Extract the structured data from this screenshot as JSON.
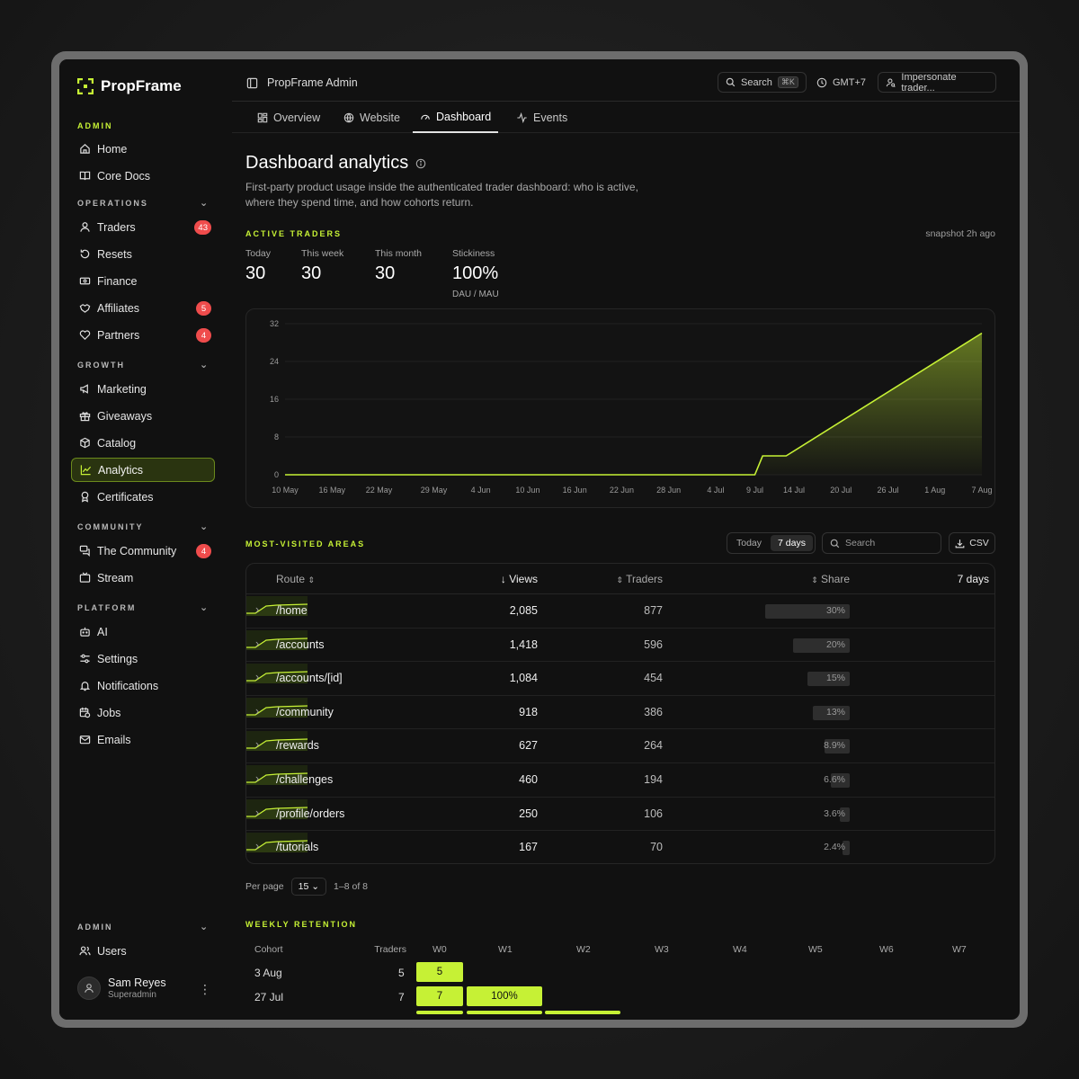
{
  "app": {
    "name": "PropFrame",
    "window_title": "PropFrame Admin"
  },
  "sidebar": {
    "admin_label": "ADMIN",
    "top_items": [
      {
        "label": "Home",
        "icon": "home-icon"
      },
      {
        "label": "Core Docs",
        "icon": "book-icon"
      }
    ],
    "sections": [
      {
        "label": "OPERATIONS",
        "items": [
          {
            "label": "Traders",
            "badge": "43"
          },
          {
            "label": "Resets"
          },
          {
            "label": "Finance"
          },
          {
            "label": "Affiliates",
            "badge": "5"
          },
          {
            "label": "Partners",
            "badge": "4"
          }
        ]
      },
      {
        "label": "GROWTH",
        "items": [
          {
            "label": "Marketing"
          },
          {
            "label": "Giveaways"
          },
          {
            "label": "Catalog"
          },
          {
            "label": "Analytics",
            "active": true
          },
          {
            "label": "Certificates"
          }
        ]
      },
      {
        "label": "COMMUNITY",
        "items": [
          {
            "label": "The Community",
            "badge": "4"
          },
          {
            "label": "Stream"
          }
        ]
      },
      {
        "label": "PLATFORM",
        "items": [
          {
            "label": "AI"
          },
          {
            "label": "Settings"
          },
          {
            "label": "Notifications"
          },
          {
            "label": "Jobs"
          },
          {
            "label": "Emails"
          }
        ]
      },
      {
        "label": "ADMIN",
        "items": [
          {
            "label": "Users"
          }
        ]
      }
    ],
    "user": {
      "name": "Sam Reyes",
      "role": "Superadmin"
    }
  },
  "topbar": {
    "search_label": "Search",
    "search_shortcut": "⌘K",
    "timezone": "GMT+7",
    "impersonate_label": "Impersonate trader..."
  },
  "tabs": [
    {
      "label": "Overview"
    },
    {
      "label": "Website"
    },
    {
      "label": "Dashboard",
      "active": true
    },
    {
      "label": "Events"
    }
  ],
  "page": {
    "title": "Dashboard analytics",
    "description": "First-party product usage inside the authenticated trader dashboard: who is active, where they spend time, and how cohorts return.",
    "active_traders_label": "ACTIVE TRADERS",
    "snapshot": "snapshot 2h ago",
    "stats": [
      {
        "label": "Today",
        "value": "30"
      },
      {
        "label": "This week",
        "value": "30"
      },
      {
        "label": "This month",
        "value": "30"
      },
      {
        "label": "Stickiness",
        "value": "100%",
        "sub": "DAU / MAU"
      }
    ]
  },
  "chart_data": {
    "type": "area",
    "x": [
      "10 May",
      "9 Jul",
      "10 Jul",
      "13 Jul",
      "7 Aug"
    ],
    "y": [
      0,
      0,
      4,
      4,
      30
    ],
    "xticks": [
      "10 May",
      "16 May",
      "22 May",
      "29 May",
      "4 Jun",
      "10 Jun",
      "16 Jun",
      "22 Jun",
      "28 Jun",
      "4 Jul",
      "9 Jul",
      "14 Jul",
      "20 Jul",
      "26 Jul",
      "1 Aug",
      "7 Aug"
    ],
    "yticks": [
      "0",
      "8",
      "16",
      "24",
      "32"
    ],
    "ylim": [
      0,
      32
    ],
    "grid": true,
    "color": "#c6f135"
  },
  "areas": {
    "label": "MOST-VISITED AREAS",
    "ranges": [
      "Today",
      "7 days"
    ],
    "search_placeholder": "Search",
    "csv_label": "CSV",
    "columns": {
      "route": "Route",
      "views": "Views",
      "traders": "Traders",
      "share": "Share",
      "trend": "7 days"
    },
    "rows": [
      {
        "route": "/home",
        "views": "2,085",
        "traders": "877",
        "share": "30%",
        "share_value": 30
      },
      {
        "route": "/accounts",
        "views": "1,418",
        "traders": "596",
        "share": "20%",
        "share_value": 20
      },
      {
        "route": "/accounts/[id]",
        "views": "1,084",
        "traders": "454",
        "share": "15%",
        "share_value": 15
      },
      {
        "route": "/community",
        "views": "918",
        "traders": "386",
        "share": "13%",
        "share_value": 13
      },
      {
        "route": "/rewards",
        "views": "627",
        "traders": "264",
        "share": "8.9%",
        "share_value": 8.9
      },
      {
        "route": "/challenges",
        "views": "460",
        "traders": "194",
        "share": "6.6%",
        "share_value": 6.6
      },
      {
        "route": "/profile/orders",
        "views": "250",
        "traders": "106",
        "share": "3.6%",
        "share_value": 3.6
      },
      {
        "route": "/tutorials",
        "views": "167",
        "traders": "70",
        "share": "2.4%",
        "share_value": 2.4
      }
    ],
    "per_page_label": "Per page",
    "per_page": "15",
    "range_text": "1–8 of 8"
  },
  "retention": {
    "label": "WEEKLY RETENTION",
    "columns": [
      "Cohort",
      "Traders",
      "W0",
      "W1",
      "W2",
      "W3",
      "W4",
      "W5",
      "W6",
      "W7"
    ],
    "rows": [
      {
        "cohort": "3 Aug",
        "traders": "5",
        "cells": [
          "5"
        ]
      },
      {
        "cohort": "27 Jul",
        "traders": "7",
        "cells": [
          "7",
          "100%"
        ]
      }
    ]
  }
}
